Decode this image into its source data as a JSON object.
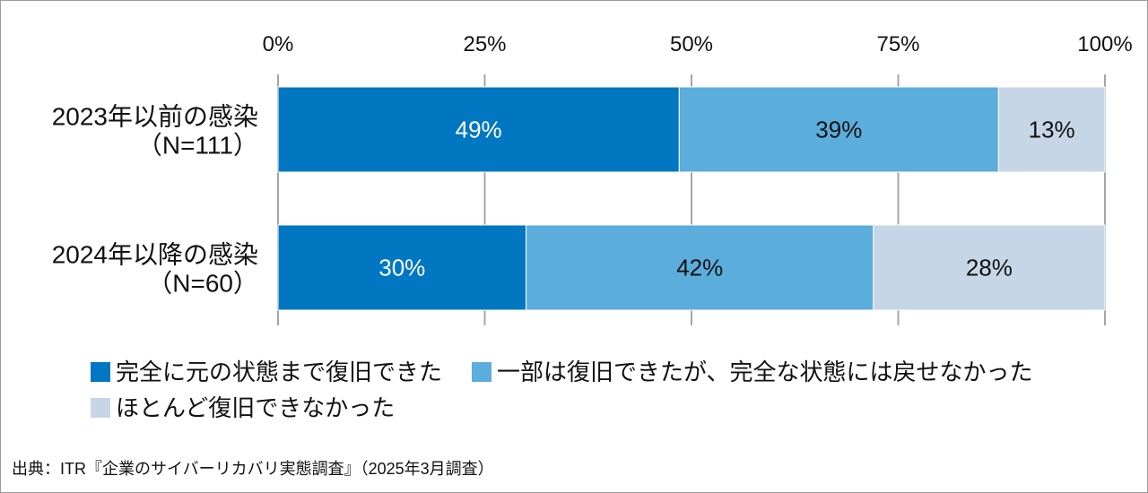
{
  "chart_data": {
    "type": "bar",
    "orientation": "horizontal",
    "stack": "percent",
    "categories": [
      "2023年以前の感染",
      "2024年以降の感染"
    ],
    "category_notes": [
      "（N=111）",
      "（N=60）"
    ],
    "series": [
      {
        "name": "完全に元の状態まで復旧できた",
        "values": [
          49,
          30
        ],
        "labels": [
          "49%",
          "30%"
        ],
        "color": "#0077C0",
        "label_color": "#FFFFFF"
      },
      {
        "name": "一部は復旧できたが、完全な状態には戻せなかった",
        "values": [
          39,
          42
        ],
        "labels": [
          "39%",
          "42%"
        ],
        "color": "#5BADDC",
        "label_color": "#111111"
      },
      {
        "name": "ほとんど復旧できなかった",
        "values": [
          13,
          28
        ],
        "labels": [
          "13%",
          "28%"
        ],
        "color": "#C6D6E6",
        "label_color": "#111111"
      }
    ],
    "xlim": [
      0,
      100
    ],
    "x_ticks": [
      0,
      25,
      50,
      75,
      100
    ],
    "x_tick_labels": [
      "0%",
      "25%",
      "50%",
      "75%",
      "100%"
    ],
    "x_axis_position": "top",
    "grid": true,
    "legend_position": "bottom-left"
  },
  "source": "出典：ITR『企業のサイバーリカバリ実態調査』（2025年3月調査）"
}
